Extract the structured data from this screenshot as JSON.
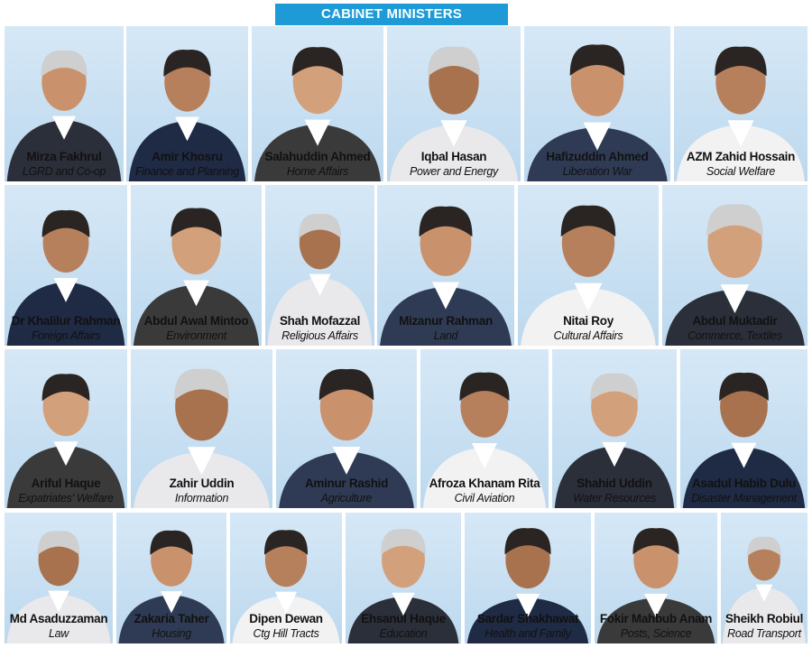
{
  "title": "CABINET MINISTERS",
  "rows": [
    [
      {
        "name": "Mirza Fakhrul",
        "portfolio": "LGRD and Co-op"
      },
      {
        "name": "Amir Khosru",
        "portfolio": "Finance and Planning"
      },
      {
        "name": "Salahuddin Ahmed",
        "portfolio": "Home Affairs"
      },
      {
        "name": "Iqbal Hasan",
        "portfolio": "Power and Energy"
      },
      {
        "name": "Hafizuddin Ahmed",
        "portfolio": "Liberation War"
      },
      {
        "name": "AZM Zahid Hossain",
        "portfolio": "Social Welfare"
      }
    ],
    [
      {
        "name": "Dr Khalilur Rahman",
        "portfolio": "Foreign Affairs"
      },
      {
        "name": "Abdul Awal Mintoo",
        "portfolio": "Environment"
      },
      {
        "name": "Shah Mofazzal",
        "portfolio": "Religious Affairs"
      },
      {
        "name": "Mizanur Rahman",
        "portfolio": "Land"
      },
      {
        "name": "Nitai Roy",
        "portfolio": "Cultural Affairs"
      },
      {
        "name": "Abdul Muktadir",
        "portfolio": "Commerce, Textiles"
      }
    ],
    [
      {
        "name": "Ariful Haque",
        "portfolio": "Expatriates' Welfare"
      },
      {
        "name": "Zahir Uddin",
        "portfolio": "Information"
      },
      {
        "name": "Aminur Rashid",
        "portfolio": "Agriculture"
      },
      {
        "name": "Afroza Khanam Rita",
        "portfolio": "Civil Aviation"
      },
      {
        "name": "Shahid Uddin",
        "portfolio": "Water Resources"
      },
      {
        "name": "Asadul Habib Dulu",
        "portfolio": "Disaster Management"
      }
    ],
    [
      {
        "name": "Md Asaduzzaman",
        "portfolio": "Law"
      },
      {
        "name": "Zakaria Taher",
        "portfolio": "Housing"
      },
      {
        "name": "Dipen Dewan",
        "portfolio": "Ctg Hill Tracts"
      },
      {
        "name": "Ehsanul Haque",
        "portfolio": "Education"
      },
      {
        "name": "Sardar Shakhawat",
        "portfolio": "Health and Family"
      },
      {
        "name": "Fokir Mahbub Anam",
        "portfolio": "Posts, Science"
      },
      {
        "name": "Sheikh Robiul",
        "portfolio": "Road Transport"
      }
    ]
  ]
}
